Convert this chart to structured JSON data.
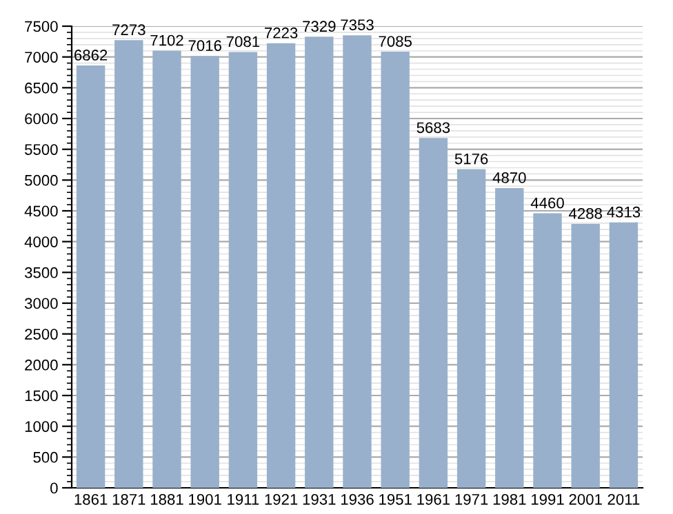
{
  "chart_data": {
    "type": "bar",
    "categories": [
      "1861",
      "1871",
      "1881",
      "1901",
      "1911",
      "1921",
      "1931",
      "1936",
      "1951",
      "1961",
      "1971",
      "1981",
      "1991",
      "2001",
      "2011"
    ],
    "values": [
      6862,
      7273,
      7102,
      7016,
      7081,
      7223,
      7329,
      7353,
      7085,
      5683,
      5176,
      4870,
      4460,
      4288,
      4313
    ],
    "color": "#98b0cb",
    "data_labels": true,
    "ylim": [
      0,
      7500
    ],
    "yticks": [
      0,
      500,
      1000,
      1500,
      2000,
      2500,
      3000,
      3500,
      4000,
      4500,
      5000,
      5500,
      6000,
      6500,
      7000,
      7500
    ],
    "grid": "y"
  }
}
